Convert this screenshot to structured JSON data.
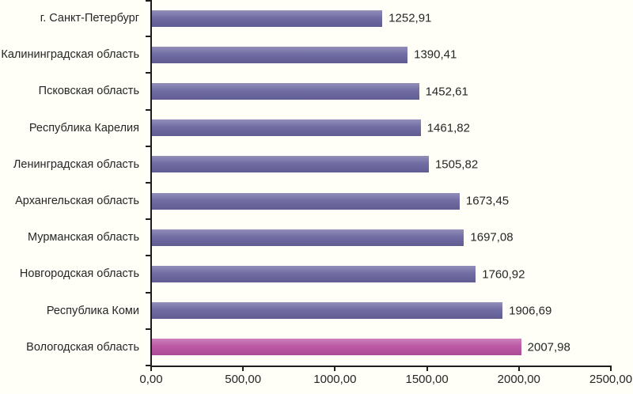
{
  "chart_data": {
    "type": "bar",
    "orientation": "horizontal",
    "title": "",
    "xlabel": "",
    "ylabel": "",
    "grid": false,
    "legend": false,
    "categories": [
      "г. Санкт-Петербург",
      "Калининградская область",
      "Псковская область",
      "Республика Карелия",
      "Ленинградская область",
      "Архангельская область",
      "Мурманская область",
      "Новгородская область",
      "Республика Коми",
      "Вологодская область"
    ],
    "values": [
      1252.91,
      1390.41,
      1452.61,
      1461.82,
      1505.82,
      1673.45,
      1697.08,
      1760.92,
      1906.69,
      2007.98
    ],
    "value_labels": [
      "1252,91",
      "1390,41",
      "1452,61",
      "1461,82",
      "1505,82",
      "1673,45",
      "1697,08",
      "1760,92",
      "1906,69",
      "2007,98"
    ],
    "highlight_index": 9,
    "xlim": [
      0,
      2500
    ],
    "x_ticks": [
      0,
      500,
      1000,
      1500,
      2000,
      2500
    ],
    "x_tick_labels": [
      "0,00",
      "500,00",
      "1000,00",
      "1500,00",
      "2000,00",
      "2500,00"
    ],
    "colors": {
      "bar_default": "#68649E",
      "bar_highlight": "#B950A0",
      "axis": "#1D1D1D",
      "background": "#FFFFF8",
      "text": "#262626"
    }
  }
}
